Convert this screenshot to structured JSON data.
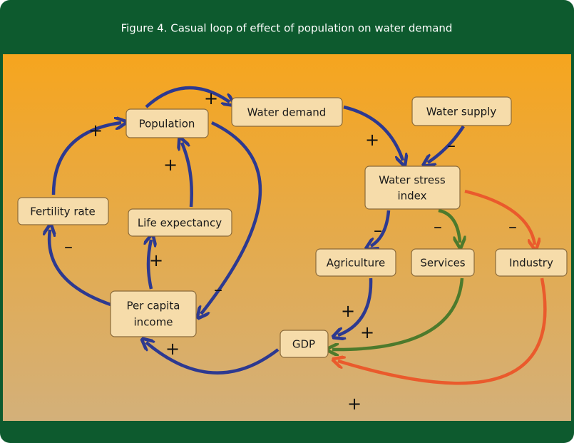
{
  "title": "Figure 4.  Casual loop of effect of population on water demand",
  "nodes": [
    {
      "label": [
        "Population"
      ]
    },
    {
      "label": [
        "Water demand"
      ]
    },
    {
      "label": [
        "Water supply"
      ]
    },
    {
      "label": [
        "Water stress",
        "index"
      ]
    },
    {
      "label": [
        "Fertility rate"
      ]
    },
    {
      "label": [
        "Life expectancy"
      ]
    },
    {
      "label": [
        "Agriculture"
      ]
    },
    {
      "label": [
        "Services"
      ]
    },
    {
      "label": [
        "Industry"
      ]
    },
    {
      "label": [
        "Per capita",
        "income"
      ]
    },
    {
      "label": [
        "GDP"
      ]
    }
  ],
  "edges": [
    {
      "from": "Population",
      "to": "Water demand",
      "sign": "+"
    },
    {
      "from": "Water demand",
      "to": "Water stress index",
      "sign": "+"
    },
    {
      "from": "Water supply",
      "to": "Water stress index",
      "sign": "–"
    },
    {
      "from": "Fertility rate",
      "to": "Population",
      "sign": "+"
    },
    {
      "from": "Life expectancy",
      "to": "Population",
      "sign": "+"
    },
    {
      "from": "Population",
      "to": "Per capita income",
      "sign": "–"
    },
    {
      "from": "Per capita income",
      "to": "Fertility rate",
      "sign": "–"
    },
    {
      "from": "Per capita income",
      "to": "Life expectancy",
      "sign": "+"
    },
    {
      "from": "Water stress index",
      "to": "Agriculture",
      "sign": "–"
    },
    {
      "from": "Water stress index",
      "to": "Services",
      "sign": "–"
    },
    {
      "from": "Water stress index",
      "to": "Industry",
      "sign": "–"
    },
    {
      "from": "Agriculture",
      "to": "GDP",
      "sign": "+"
    },
    {
      "from": "Services",
      "to": "GDP",
      "sign": "+"
    },
    {
      "from": "Industry",
      "to": "GDP",
      "sign": "+"
    },
    {
      "from": "GDP",
      "to": "Per capita income",
      "sign": "+"
    }
  ]
}
